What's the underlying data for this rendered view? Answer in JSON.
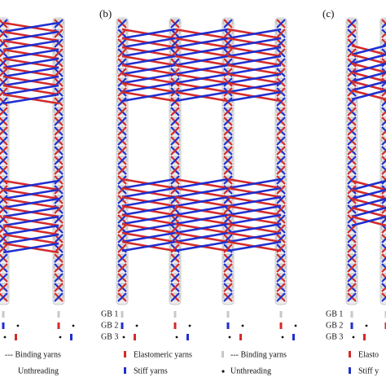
{
  "panel_a": {
    "legend": {
      "binding": "--- Binding yarns",
      "unthreading": "Unthreading"
    }
  },
  "panel_b": {
    "label": "(b)",
    "guide_bars": [
      "GB 1",
      "GB 2",
      "GB 3"
    ],
    "legend": {
      "elastomeric": "Elastomeric yarns",
      "binding": "--- Binding yarns",
      "stiff": "Stiff yarns",
      "unthreading": "Unthreading"
    }
  },
  "panel_c": {
    "label": "(c)",
    "guide_bars": [
      "GB 1",
      "GB 2",
      "GB 3"
    ],
    "legend": {
      "elastomeric": "Elasto",
      "stiff": "Stiff y"
    }
  }
}
